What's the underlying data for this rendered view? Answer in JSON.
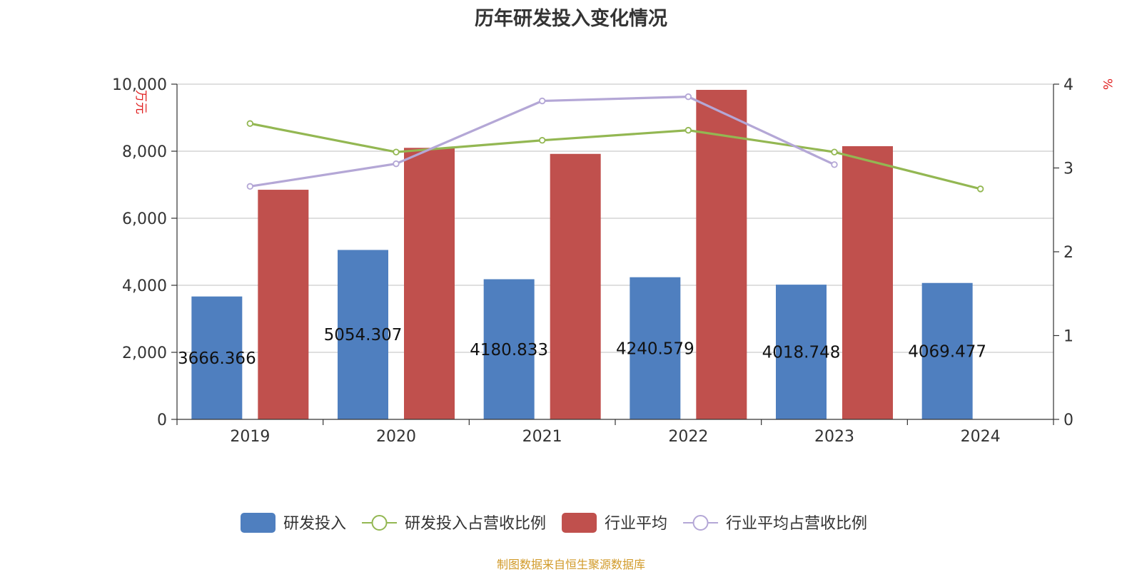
{
  "chart_data": {
    "type": "bar",
    "title": "历年研发投入变化情况",
    "categories": [
      "2019",
      "2020",
      "2021",
      "2022",
      "2023",
      "2024"
    ],
    "y_left": {
      "label": "万元",
      "ylim": [
        0,
        10000
      ],
      "ticks": [
        0,
        2000,
        4000,
        6000,
        8000,
        10000
      ],
      "tick_labels": [
        "0",
        "2,000",
        "4,000",
        "6,000",
        "8,000",
        "10,000"
      ]
    },
    "y_right": {
      "label": "%",
      "ylim": [
        0,
        4
      ],
      "ticks": [
        0,
        1,
        2,
        3,
        4
      ],
      "tick_labels": [
        "0",
        "1",
        "2",
        "3",
        "4"
      ]
    },
    "series": [
      {
        "name": "研发投入",
        "kind": "bar",
        "axis": "left",
        "color": "#4f7fbf",
        "values": [
          3666.366,
          5054.307,
          4180.833,
          4240.579,
          4018.748,
          4069.477
        ],
        "data_labels": [
          "3666.366",
          "5054.307",
          "4180.833",
          "4240.579",
          "4018.748",
          "4069.477"
        ]
      },
      {
        "name": "研发投入占营收比例",
        "kind": "line",
        "axis": "right",
        "color": "#93b752",
        "values": [
          3.53,
          3.19,
          3.33,
          3.45,
          3.19,
          2.75
        ]
      },
      {
        "name": "行业平均",
        "kind": "bar",
        "axis": "left",
        "color": "#c0504d",
        "values": [
          6850,
          8100,
          7920,
          9830,
          8150,
          null
        ]
      },
      {
        "name": "行业平均占营收比例",
        "kind": "line",
        "axis": "right",
        "color": "#b4a7d6",
        "values": [
          2.78,
          3.05,
          3.8,
          3.85,
          3.04,
          null
        ]
      }
    ],
    "grid": true,
    "legend_position": "bottom"
  },
  "colors": {
    "axis": "#333333",
    "grid": "#cccccc",
    "unit_label": "#e02020",
    "source": "#d19a29"
  },
  "source": "制图数据来自恒生聚源数据库"
}
